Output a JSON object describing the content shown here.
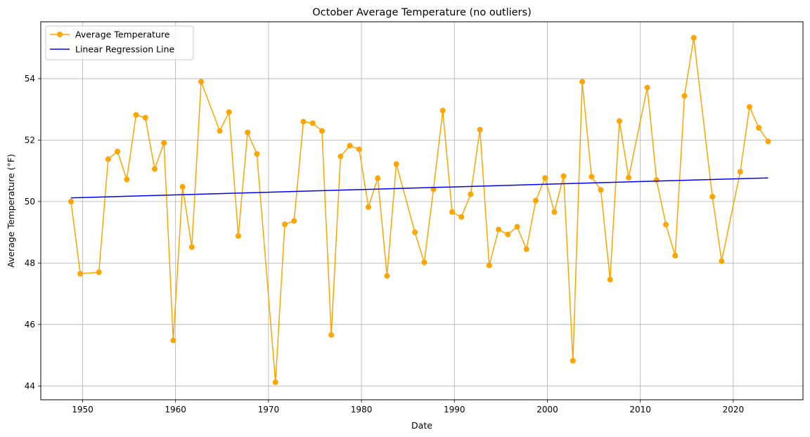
{
  "chart_data": {
    "type": "line",
    "title": "October Average Temperature (no outliers)",
    "xlabel": "Date",
    "ylabel": "Average Temperature (°F)",
    "xlim": [
      1945.5,
      2027.5
    ],
    "ylim": [
      43.55,
      55.85
    ],
    "xticks": [
      1950,
      1960,
      1970,
      1980,
      1990,
      2000,
      2010,
      2020
    ],
    "yticks": [
      44,
      46,
      48,
      50,
      52,
      54
    ],
    "grid": true,
    "legend_position": "upper-left",
    "series": [
      {
        "name": "Average Temperature",
        "color": "#ffa500",
        "marker": "circle",
        "x": [
          1948.75,
          1949.75,
          1951.75,
          1952.75,
          1953.75,
          1954.75,
          1955.75,
          1956.75,
          1957.75,
          1958.75,
          1959.75,
          1960.75,
          1961.75,
          1962.75,
          1964.75,
          1965.75,
          1966.75,
          1967.75,
          1968.75,
          1970.75,
          1971.75,
          1972.75,
          1973.75,
          1974.75,
          1975.75,
          1976.75,
          1977.75,
          1978.75,
          1979.75,
          1980.75,
          1981.75,
          1982.75,
          1983.75,
          1985.75,
          1986.75,
          1987.75,
          1988.75,
          1989.75,
          1990.75,
          1991.75,
          1992.75,
          1993.75,
          1994.75,
          1995.75,
          1996.75,
          1997.75,
          1998.75,
          1999.75,
          2000.75,
          2001.75,
          2002.75,
          2003.75,
          2004.75,
          2005.75,
          2006.75,
          2007.75,
          2008.75,
          2010.75,
          2011.75,
          2012.75,
          2013.75,
          2014.75,
          2015.75,
          2017.75,
          2018.75,
          2020.75,
          2021.75,
          2022.75,
          2023.75
        ],
        "values": [
          50.0,
          47.65,
          47.7,
          51.38,
          51.63,
          50.72,
          52.82,
          52.73,
          51.06,
          51.91,
          45.48,
          50.48,
          48.52,
          53.9,
          52.3,
          52.91,
          48.88,
          52.25,
          51.55,
          44.12,
          49.26,
          49.37,
          52.6,
          52.55,
          52.3,
          45.66,
          51.47,
          51.82,
          51.7,
          49.82,
          50.76,
          47.58,
          51.22,
          49.0,
          48.02,
          50.4,
          52.96,
          49.66,
          49.5,
          50.24,
          52.34,
          47.92,
          49.09,
          48.93,
          49.18,
          48.45,
          50.03,
          50.77,
          49.66,
          50.83,
          44.82,
          53.9,
          50.81,
          50.38,
          47.46,
          52.62,
          50.78,
          53.71,
          50.7,
          49.25,
          48.24,
          53.44,
          55.33,
          50.16,
          48.06,
          50.97,
          53.08,
          52.4,
          51.96
        ]
      },
      {
        "name": "Linear Regression Line",
        "color": "#0000ff",
        "marker": "none",
        "x": [
          1948.75,
          2023.75
        ],
        "values": [
          50.12,
          50.77
        ]
      }
    ]
  }
}
